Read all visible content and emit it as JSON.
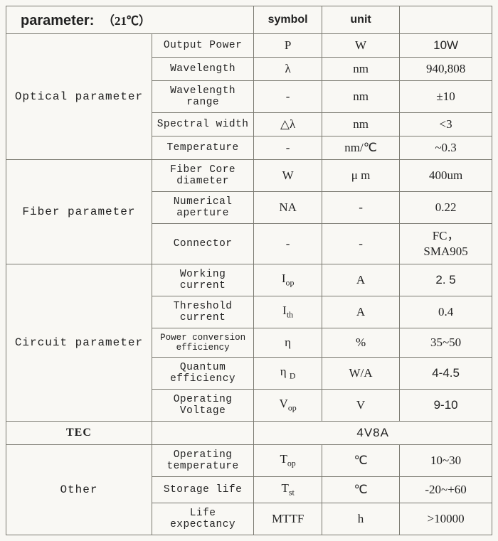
{
  "header": {
    "title": "parameter:",
    "note": "（21℃）",
    "col_symbol": "symbol",
    "col_unit": "unit"
  },
  "groups": {
    "optical": {
      "label": "Optical parameter",
      "rows": [
        {
          "param": "Output Power",
          "symbol": "P",
          "unit": "W",
          "value": "10W",
          "val_sans": true
        },
        {
          "param": "Wavelength",
          "symbol": "λ",
          "unit": "nm",
          "value": "940,808"
        },
        {
          "param": "Wavelength range",
          "symbol": "-",
          "unit": "nm",
          "value": "±10"
        },
        {
          "param": "Spectral width",
          "symbol": "△λ",
          "unit": "nm",
          "value": "<3"
        },
        {
          "param": "Temperature",
          "symbol": "-",
          "unit": "nm/℃",
          "value": "~0.3"
        }
      ]
    },
    "fiber": {
      "label": "Fiber parameter",
      "rows": [
        {
          "param": "Fiber Core diameter",
          "symbol": "W",
          "unit": "μ m",
          "value": "400um"
        },
        {
          "param": "Numerical aperture",
          "symbol": "NA",
          "unit": "-",
          "value": "0.22"
        },
        {
          "param": "Connector",
          "symbol": "-",
          "unit": "-",
          "value": "FC，\nSMA905"
        }
      ]
    },
    "circuit": {
      "label": "Circuit parameter",
      "rows": [
        {
          "param": "Working current",
          "symbol_html": "I<sub>op</sub>",
          "unit": "A",
          "value": "2. 5",
          "val_sans": true
        },
        {
          "param": "Threshold current",
          "symbol_html": "I<sub>th</sub>",
          "unit": "A",
          "value": "0.4"
        },
        {
          "param": "Power conversion efficiency",
          "symbol": "η",
          "unit": "%",
          "value": "35~50",
          "small": true
        },
        {
          "param": "Quantum efficiency",
          "symbol_html": "η <sub>D</sub>",
          "unit": "W/A",
          "value": "4-4.5",
          "val_sans": true
        },
        {
          "param": "Operating Voltage",
          "symbol_html": "V<sub>op</sub>",
          "unit": "V",
          "value": "9-10",
          "val_sans": true
        }
      ]
    },
    "tec": {
      "label": "TEC",
      "value": "4V8A"
    },
    "other": {
      "label": "Other",
      "rows": [
        {
          "param": "Operating temperature",
          "symbol_html": "T<sub>op</sub>",
          "unit": "℃",
          "value": "10~30"
        },
        {
          "param": "Storage life",
          "symbol_html": "T<sub>st</sub>",
          "unit": "℃",
          "value": "-20~+60"
        },
        {
          "param": "Life expectancy",
          "symbol": "MTTF",
          "unit": "h",
          "value": ">10000"
        }
      ]
    }
  }
}
